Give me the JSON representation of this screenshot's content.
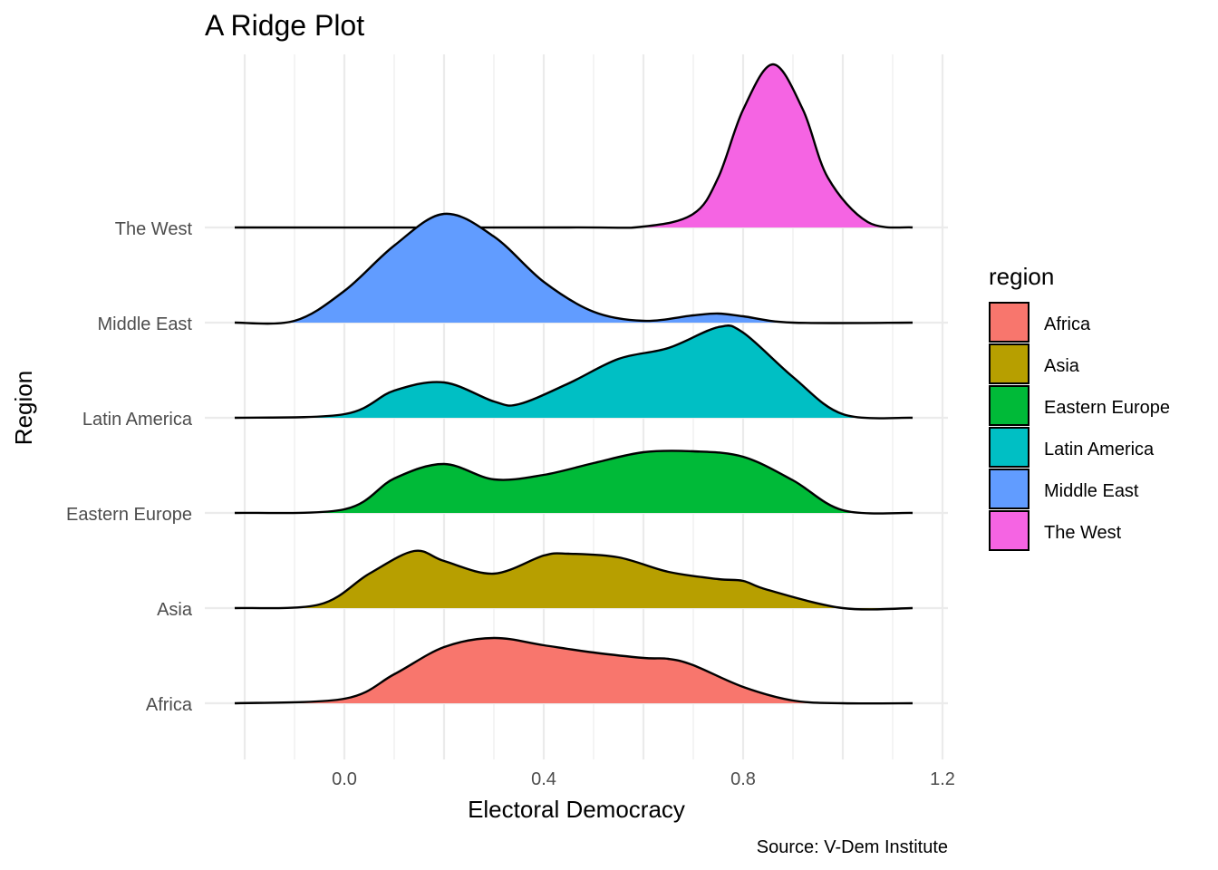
{
  "chart_data": {
    "type": "ridgeline",
    "title": "A Ridge Plot",
    "xlabel": "Electoral Democracy",
    "ylabel": "Region",
    "caption": "Source: V-Dem Institute",
    "xlim": [
      -0.25,
      1.2
    ],
    "x_ticks": [
      0.0,
      0.4,
      0.8,
      1.2
    ],
    "x_tick_labels": [
      "0.0",
      "0.4",
      "0.8",
      "1.2"
    ],
    "legend": {
      "title": "region",
      "position": "right"
    },
    "grid": true,
    "series": [
      {
        "name": "Africa",
        "color": "#F8766D",
        "x": [
          -0.22,
          0.0,
          0.1,
          0.2,
          0.3,
          0.4,
          0.5,
          0.6,
          0.65,
          0.7,
          0.8,
          0.9,
          1.0,
          1.14
        ],
        "density": [
          0.0,
          0.05,
          0.32,
          0.62,
          0.72,
          0.64,
          0.56,
          0.5,
          0.49,
          0.42,
          0.18,
          0.03,
          0.0,
          0.0
        ]
      },
      {
        "name": "Asia",
        "color": "#B79F00",
        "x": [
          -0.22,
          -0.05,
          0.05,
          0.14,
          0.2,
          0.3,
          0.4,
          0.45,
          0.55,
          0.65,
          0.75,
          0.8,
          0.85,
          1.0,
          1.14
        ],
        "density": [
          0.0,
          0.04,
          0.38,
          0.63,
          0.52,
          0.38,
          0.58,
          0.6,
          0.56,
          0.4,
          0.32,
          0.3,
          0.2,
          0.0,
          0.0
        ]
      },
      {
        "name": "Eastern Europe",
        "color": "#00BA38",
        "x": [
          -0.22,
          0.0,
          0.1,
          0.2,
          0.3,
          0.4,
          0.5,
          0.6,
          0.7,
          0.8,
          0.9,
          1.0,
          1.14
        ],
        "density": [
          0.0,
          0.04,
          0.38,
          0.54,
          0.37,
          0.42,
          0.55,
          0.67,
          0.68,
          0.62,
          0.36,
          0.03,
          0.0
        ]
      },
      {
        "name": "Latin America",
        "color": "#00BFC4",
        "x": [
          -0.22,
          0.0,
          0.1,
          0.2,
          0.3,
          0.35,
          0.45,
          0.55,
          0.65,
          0.75,
          0.8,
          0.9,
          1.0,
          1.14
        ],
        "density": [
          0.0,
          0.04,
          0.3,
          0.39,
          0.18,
          0.15,
          0.38,
          0.65,
          0.77,
          1.0,
          0.94,
          0.45,
          0.04,
          0.0
        ]
      },
      {
        "name": "Middle East",
        "color": "#619CFF",
        "x": [
          -0.22,
          -0.1,
          0.0,
          0.1,
          0.2,
          0.3,
          0.4,
          0.5,
          0.6,
          0.7,
          0.75,
          0.8,
          0.9,
          1.14
        ],
        "density": [
          0.0,
          0.02,
          0.35,
          0.85,
          1.2,
          0.95,
          0.45,
          0.12,
          0.02,
          0.08,
          0.1,
          0.07,
          0.0,
          0.0
        ]
      },
      {
        "name": "The West",
        "color": "#F564E3",
        "x": [
          -0.22,
          0.45,
          0.6,
          0.7,
          0.75,
          0.8,
          0.86,
          0.92,
          0.97,
          1.05,
          1.14
        ],
        "density": [
          0.0,
          0.0,
          0.01,
          0.15,
          0.55,
          1.3,
          1.8,
          1.3,
          0.55,
          0.06,
          0.0
        ]
      }
    ]
  }
}
